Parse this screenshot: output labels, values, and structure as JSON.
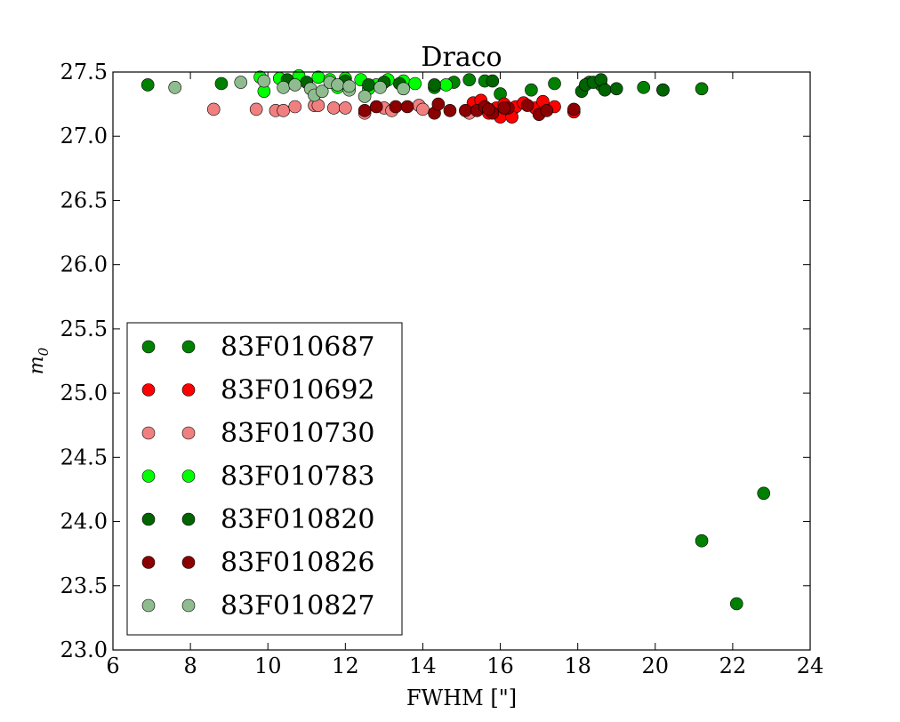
{
  "chart_data": {
    "type": "scatter",
    "title": "Draco",
    "xlabel": "FWHM [\"]",
    "ylabel": "m_0",
    "xlim": [
      6,
      24
    ],
    "ylim": [
      23.0,
      27.5
    ],
    "xticks": [
      "6",
      "8",
      "10",
      "12",
      "14",
      "16",
      "18",
      "20",
      "22",
      "24"
    ],
    "yticks": [
      "23.0",
      "23.5",
      "24.0",
      "24.5",
      "25.0",
      "25.5",
      "26.0",
      "26.5",
      "27.0",
      "27.5"
    ],
    "grid": false,
    "legend_position": "lower-left",
    "series": [
      {
        "name": "83F010687",
        "color": "#008000",
        "points": [
          [
            6.9,
            27.4
          ],
          [
            8.8,
            27.41
          ],
          [
            14.3,
            27.38
          ],
          [
            14.8,
            27.42
          ],
          [
            15.2,
            27.44
          ],
          [
            15.6,
            27.43
          ],
          [
            16.0,
            27.33
          ],
          [
            16.8,
            27.36
          ],
          [
            17.4,
            27.41
          ],
          [
            18.3,
            27.42
          ],
          [
            18.6,
            27.4
          ],
          [
            19.7,
            27.38
          ],
          [
            20.2,
            27.36
          ],
          [
            21.2,
            27.37
          ],
          [
            21.2,
            23.85
          ],
          [
            22.1,
            23.36
          ],
          [
            22.8,
            24.22
          ]
        ]
      },
      {
        "name": "83F010692",
        "color": "#ff0000",
        "points": [
          [
            15.3,
            27.26
          ],
          [
            15.5,
            27.28
          ],
          [
            15.7,
            27.18
          ],
          [
            15.9,
            27.22
          ],
          [
            16.0,
            27.15
          ],
          [
            16.1,
            27.25
          ],
          [
            16.3,
            27.2
          ],
          [
            16.4,
            27.23
          ],
          [
            16.6,
            27.26
          ],
          [
            16.3,
            27.15
          ],
          [
            16.9,
            27.22
          ],
          [
            17.1,
            27.27
          ],
          [
            17.4,
            27.23
          ],
          [
            17.9,
            27.19
          ]
        ]
      },
      {
        "name": "83F010730",
        "color": "#f08080",
        "points": [
          [
            8.6,
            27.21
          ],
          [
            9.7,
            27.21
          ],
          [
            10.2,
            27.2
          ],
          [
            10.4,
            27.2
          ],
          [
            10.7,
            27.23
          ],
          [
            11.2,
            27.24
          ],
          [
            11.3,
            27.24
          ],
          [
            11.7,
            27.22
          ],
          [
            12.0,
            27.22
          ],
          [
            12.5,
            27.18
          ],
          [
            13.0,
            27.22
          ],
          [
            13.2,
            27.2
          ],
          [
            13.9,
            27.24
          ],
          [
            14.0,
            27.21
          ],
          [
            15.2,
            27.18
          ]
        ]
      },
      {
        "name": "83F010783",
        "color": "#00ff00",
        "points": [
          [
            9.8,
            27.46
          ],
          [
            10.3,
            27.45
          ],
          [
            10.8,
            27.47
          ],
          [
            11.3,
            27.46
          ],
          [
            11.6,
            27.44
          ],
          [
            12.0,
            27.45
          ],
          [
            12.4,
            27.44
          ],
          [
            12.8,
            27.4
          ],
          [
            13.1,
            27.44
          ],
          [
            13.5,
            27.43
          ],
          [
            13.8,
            27.41
          ],
          [
            14.6,
            27.4
          ],
          [
            9.9,
            27.35
          ],
          [
            11.8,
            27.38
          ],
          [
            12.6,
            27.37
          ]
        ]
      },
      {
        "name": "83F010820",
        "color": "#006400",
        "points": [
          [
            10.5,
            27.44
          ],
          [
            11.0,
            27.42
          ],
          [
            12.0,
            27.43
          ],
          [
            12.6,
            27.4
          ],
          [
            13.0,
            27.42
          ],
          [
            13.4,
            27.41
          ],
          [
            14.3,
            27.4
          ],
          [
            15.8,
            27.43
          ],
          [
            18.1,
            27.35
          ],
          [
            18.2,
            27.4
          ],
          [
            18.4,
            27.42
          ],
          [
            18.6,
            27.44
          ],
          [
            18.7,
            27.36
          ],
          [
            19.0,
            27.37
          ],
          [
            20.2,
            27.36
          ]
        ]
      },
      {
        "name": "83F010826",
        "color": "#8b0000",
        "points": [
          [
            12.5,
            27.2
          ],
          [
            12.8,
            27.23
          ],
          [
            13.3,
            27.23
          ],
          [
            13.6,
            27.23
          ],
          [
            14.3,
            27.18
          ],
          [
            14.4,
            27.25
          ],
          [
            14.7,
            27.2
          ],
          [
            15.1,
            27.2
          ],
          [
            15.4,
            27.2
          ],
          [
            15.6,
            27.23
          ],
          [
            15.8,
            27.18
          ],
          [
            16.2,
            27.22
          ],
          [
            16.7,
            27.24
          ],
          [
            17.0,
            27.17
          ],
          [
            17.2,
            27.2
          ],
          [
            17.9,
            27.21
          ],
          [
            15.7,
            27.21
          ],
          [
            16.1,
            27.22
          ]
        ]
      },
      {
        "name": "83F010827",
        "color": "#8fbc8f",
        "points": [
          [
            7.6,
            27.38
          ],
          [
            9.3,
            27.42
          ],
          [
            9.9,
            27.43
          ],
          [
            10.4,
            27.38
          ],
          [
            10.7,
            27.4
          ],
          [
            11.1,
            27.37
          ],
          [
            11.2,
            27.32
          ],
          [
            11.4,
            27.35
          ],
          [
            11.6,
            27.42
          ],
          [
            11.8,
            27.4
          ],
          [
            12.1,
            27.36
          ],
          [
            12.5,
            27.31
          ],
          [
            12.9,
            27.38
          ],
          [
            13.5,
            27.37
          ],
          [
            12.1,
            27.39
          ]
        ]
      }
    ]
  }
}
